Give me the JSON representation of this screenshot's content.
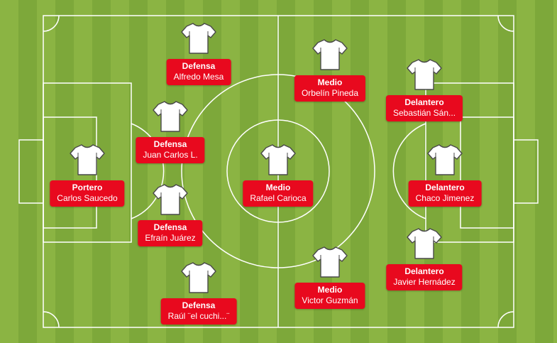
{
  "colors": {
    "label_bg": "#e8091e",
    "grass_light": "#8bb443",
    "grass_dark": "#7da83a",
    "lines": "#ffffff"
  },
  "players": [
    {
      "role": "Portero",
      "name": "Carlos Saucedo",
      "icon": "shirt-icon"
    },
    {
      "role": "Defensa",
      "name": "Alfredo Mesa",
      "icon": "shirt-icon"
    },
    {
      "role": "Defensa",
      "name": "Juan Carlos L.",
      "icon": "shirt-icon"
    },
    {
      "role": "Defensa",
      "name": "Efraín Juárez",
      "icon": "shirt-icon"
    },
    {
      "role": "Defensa",
      "name": "Raúl ¨el cuchi...¨",
      "icon": "shirt-icon"
    },
    {
      "role": "Medio",
      "name": "Orbelín Pineda",
      "icon": "shirt-icon"
    },
    {
      "role": "Medio",
      "name": "Rafael Carioca",
      "icon": "shirt-icon"
    },
    {
      "role": "Medio",
      "name": "Victor Guzmán",
      "icon": "shirt-icon"
    },
    {
      "role": "Delantero",
      "name": "Sebastián Sán...",
      "icon": "shirt-icon"
    },
    {
      "role": "Delantero",
      "name": "Chaco Jimenez",
      "icon": "shirt-icon"
    },
    {
      "role": "Delantero",
      "name": "Javier Hernádez",
      "icon": "shirt-icon"
    }
  ]
}
